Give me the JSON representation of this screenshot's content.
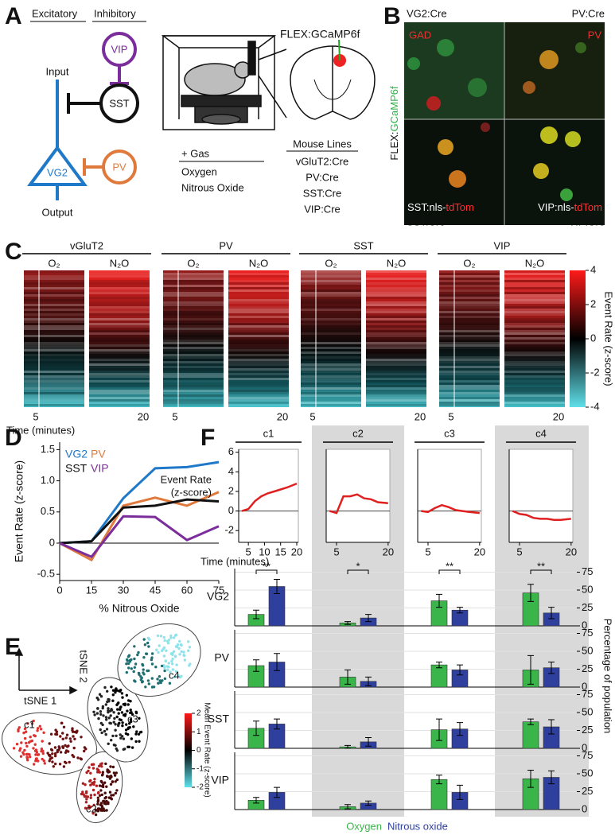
{
  "panel_a": {
    "label": "A",
    "excitatory": "Excitatory",
    "inhibitory": "Inhibitory",
    "cells": {
      "vip": "VIP",
      "sst": "SST",
      "pv": "PV",
      "vg2": "VG2"
    },
    "input": "Input",
    "output": "Output",
    "virus": "FLEX:GCaMP6f",
    "gas_title": "+ Gas",
    "gases": [
      "Oxygen",
      "Nitrous Oxide"
    ],
    "mouse_title": "Mouse Lines",
    "mouse_lines": [
      "vGluT2:Cre",
      "PV:Cre",
      "SST:Cre",
      "VIP:Cre"
    ]
  },
  "panel_b": {
    "label": "B",
    "top_left": "VG2:Cre",
    "top_left_stain": "GAD",
    "top_right": "PV:Cre",
    "top_right_stain": "PV",
    "side_prefix": "FLEX:",
    "side_indicator": "GCaMP6f",
    "bottom_left_prefix": "SST:nls-",
    "bottom_right_prefix": "VIP:nls-",
    "reporter": "tdTom",
    "bottom_left": "SST:Cre",
    "bottom_right": "VIP:Cre"
  },
  "panel_c": {
    "label": "C",
    "groups": [
      "vGluT2",
      "PV",
      "SST",
      "VIP"
    ],
    "conditions": [
      "O₂",
      "N₂O"
    ],
    "xticks": [
      5,
      20
    ],
    "xlabel": "Time (minutes)",
    "colorbar_ticks": [
      4,
      2,
      0,
      -2,
      -4
    ],
    "colorbar_label": "Event Rate (z-score)"
  },
  "panel_d": {
    "label": "D"
  },
  "panel_e": {
    "label": "E",
    "axis_x": "tSNE 1",
    "axis_y": "tSNE 2",
    "clusters": [
      "c1",
      "c2",
      "c3",
      "c4"
    ],
    "colorbar_ticks": [
      2,
      1,
      0,
      -1,
      -2
    ],
    "colorbar_label": "Mean Event Rate (z-score)"
  },
  "panel_f": {
    "label": "F",
    "legend": [
      {
        "name": "Oxygen",
        "color": "#3ab54a"
      },
      {
        "name": "Nitrous oxide",
        "color": "#2e3f9e"
      }
    ],
    "right_axis_label": "Percentage of population"
  },
  "chart_data": [
    {
      "type": "line",
      "x": [
        0,
        15,
        30,
        45,
        60,
        75
      ],
      "xlim": [
        0,
        75
      ],
      "xticks": [
        0,
        15,
        30,
        45,
        60,
        75
      ],
      "ylim": [
        -0.6,
        1.62
      ],
      "yticks": [
        -0.5,
        0,
        0.5,
        {
          "value": 1,
          "label": "1.0"
        },
        1.5
      ],
      "xlabel": "% Nitrous Oxide",
      "ylabel": "Event Rate (z-score)",
      "series": [
        {
          "name": "VG2",
          "color": "#1f78c8",
          "values": [
            0,
            0.03,
            0.72,
            1.2,
            1.22,
            1.3
          ]
        },
        {
          "name": "PV",
          "color": "#e07a3c",
          "values": [
            0,
            -0.27,
            0.6,
            0.73,
            0.6,
            0.82
          ]
        },
        {
          "name": "SST",
          "color": "#111111",
          "values": [
            0,
            0.03,
            0.57,
            0.6,
            0.7,
            0.67
          ]
        },
        {
          "name": "VIP",
          "color": "#7b2d9b",
          "values": [
            0,
            -0.22,
            0.43,
            0.42,
            0.05,
            0.27
          ]
        }
      ]
    },
    {
      "type": "line",
      "title": "c1",
      "x": [
        3,
        5,
        7,
        9,
        11,
        13,
        15,
        17,
        20
      ],
      "values": [
        0,
        0.2,
        1.0,
        1.5,
        1.8,
        2.0,
        2.2,
        2.4,
        2.8
      ],
      "color": "#e02020",
      "xlim": [
        2,
        20.5
      ],
      "ylim": [
        -3.2,
        6.3
      ],
      "xticks": [
        5,
        10,
        15,
        20
      ],
      "yticks": [
        -2,
        0,
        2,
        4,
        6
      ],
      "ylabel": [
        "Event Rate",
        "(z-score)"
      ],
      "xlabel": "Time (minutes)"
    },
    {
      "type": "line",
      "title": "c2",
      "x": [
        3,
        5,
        7,
        9,
        11,
        13,
        15,
        17,
        20
      ],
      "values": [
        0,
        -0.2,
        1.5,
        1.5,
        1.7,
        1.3,
        1.2,
        0.9,
        0.8
      ],
      "color": "#e02020",
      "xlim": [
        2,
        20.5
      ],
      "ylim": [
        -3.2,
        6.3
      ],
      "xticks": [
        5,
        20
      ]
    },
    {
      "type": "line",
      "title": "c3",
      "x": [
        3,
        5,
        7,
        9,
        11,
        13,
        15,
        17,
        20
      ],
      "values": [
        0,
        -0.1,
        0.3,
        0.6,
        0.4,
        0.1,
        0,
        -0.1,
        -0.2
      ],
      "color": "#e02020",
      "xlim": [
        2,
        20.5
      ],
      "ylim": [
        -3.2,
        6.3
      ],
      "xticks": [
        5,
        20
      ]
    },
    {
      "type": "line",
      "title": "c4",
      "x": [
        3,
        5,
        7,
        9,
        11,
        13,
        15,
        17,
        20
      ],
      "values": [
        0,
        -0.3,
        -0.4,
        -0.7,
        -0.8,
        -0.8,
        -0.9,
        -0.9,
        -0.8
      ],
      "color": "#e02020",
      "xlim": [
        2,
        20.5
      ],
      "ylim": [
        -3.2,
        6.3
      ],
      "xticks": [
        5,
        20
      ]
    },
    {
      "type": "bar",
      "ylabel": "VG2",
      "ylim": [
        0,
        80
      ],
      "yticks": [
        0,
        25,
        50,
        75
      ],
      "grid": true,
      "annotations": [
        "**",
        "*",
        "**",
        "**"
      ],
      "series": [
        {
          "color": "#3ab54a",
          "values": [
            16,
            4,
            35,
            46
          ],
          "errors": [
            6,
            2,
            9,
            12
          ]
        },
        {
          "color": "#2e3f9e",
          "values": [
            55,
            11,
            22,
            18
          ],
          "errors": [
            10,
            5,
            4,
            8
          ]
        }
      ]
    },
    {
      "type": "bar",
      "ylabel": "PV",
      "ylim": [
        0,
        80
      ],
      "yticks": [
        0,
        25,
        50,
        75
      ],
      "grid": true,
      "series": [
        {
          "color": "#3ab54a",
          "values": [
            30,
            14,
            31,
            24
          ],
          "errors": [
            8,
            10,
            4,
            20
          ]
        },
        {
          "color": "#2e3f9e",
          "values": [
            35,
            8,
            24,
            27
          ],
          "errors": [
            12,
            6,
            7,
            8
          ]
        }
      ]
    },
    {
      "type": "bar",
      "ylabel": "SST",
      "ylim": [
        0,
        80
      ],
      "yticks": [
        0,
        25,
        50,
        75
      ],
      "grid": true,
      "series": [
        {
          "color": "#3ab54a",
          "values": [
            28,
            2,
            26,
            37
          ],
          "errors": [
            10,
            2,
            15,
            4
          ]
        },
        {
          "color": "#2e3f9e",
          "values": [
            34,
            9,
            27,
            30
          ],
          "errors": [
            7,
            6,
            9,
            10
          ]
        }
      ]
    },
    {
      "type": "bar",
      "ylabel": "VIP",
      "ylim": [
        0,
        80
      ],
      "yticks": [
        0,
        25,
        50,
        75
      ],
      "grid": true,
      "series": [
        {
          "color": "#3ab54a",
          "values": [
            13,
            4,
            42,
            43
          ],
          "errors": [
            4,
            3,
            6,
            12
          ]
        },
        {
          "color": "#2e3f9e",
          "values": [
            24,
            9,
            24,
            45
          ],
          "errors": [
            7,
            3,
            10,
            9
          ]
        }
      ]
    }
  ]
}
